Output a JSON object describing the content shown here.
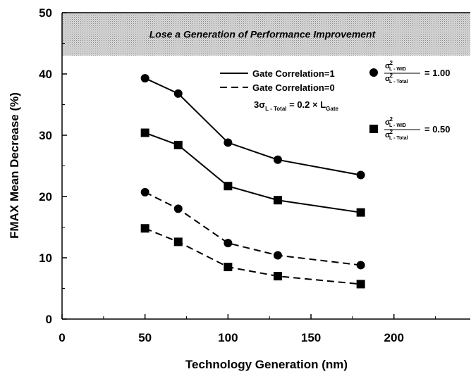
{
  "chart_data": {
    "type": "line",
    "xlabel": "Technology Generation (nm)",
    "ylabel": "FMAX Mean Decrease (%)",
    "xlim": [
      0,
      246
    ],
    "ylim": [
      0,
      50
    ],
    "xticks": [
      0,
      50,
      100,
      150,
      200
    ],
    "yticks": [
      0,
      10,
      20,
      30,
      40,
      50
    ],
    "xminor": [
      25,
      75,
      125,
      175,
      225
    ],
    "yminor": [
      5,
      15,
      25,
      35,
      45
    ],
    "band": {
      "from": 43,
      "to": 50,
      "label": "Lose a Generation of Performance Improvement"
    },
    "x": [
      50,
      70,
      100,
      130,
      180
    ],
    "series": [
      {
        "line": "solid",
        "marker": "circle",
        "color": "#000000",
        "values": [
          39.3,
          36.8,
          28.8,
          26.0,
          23.5
        ]
      },
      {
        "line": "solid",
        "marker": "square",
        "color": "#000000",
        "values": [
          30.4,
          28.4,
          21.7,
          19.4,
          17.4
        ]
      },
      {
        "line": "dashed",
        "marker": "circle",
        "color": "#000000",
        "values": [
          20.7,
          18.0,
          12.4,
          10.4,
          8.8
        ]
      },
      {
        "line": "dashed",
        "marker": "square",
        "color": "#000000",
        "values": [
          14.8,
          12.6,
          8.5,
          7.0,
          5.7
        ]
      }
    ],
    "line_legend": [
      {
        "line": "solid",
        "label": "Gate Correlation=1"
      },
      {
        "line": "dashed",
        "label": "Gate Correlation=0"
      }
    ],
    "annotation": {
      "a": "3σ",
      "a_sub": "L - Total",
      "b": " = 0.2 × L",
      "b_sub": "Gate"
    },
    "marker_legend": [
      {
        "marker": "circle",
        "sigma": "σ",
        "power": "2",
        "num_sub": "L - WID",
        "den_sub": "L - Total",
        "eq": "= 1.00"
      },
      {
        "marker": "square",
        "sigma": "σ",
        "power": "2",
        "num_sub": "L - WID",
        "den_sub": "L - Total",
        "eq": "= 0.50"
      }
    ]
  }
}
